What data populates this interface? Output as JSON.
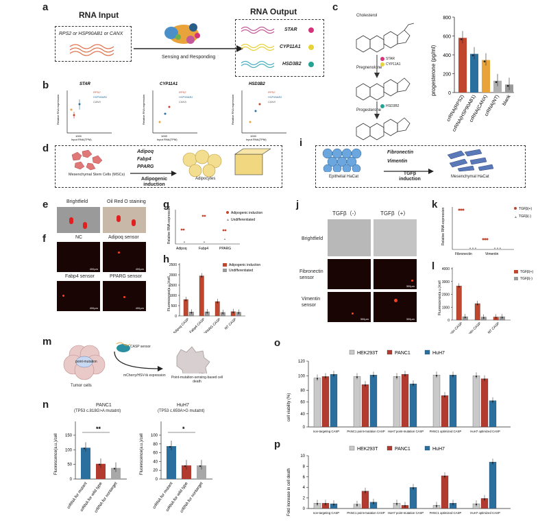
{
  "panels": {
    "a": {
      "letter": "a",
      "rna_input": "RNA Input",
      "input_genes": "RPS2 or HSP90AB1 or CANX",
      "arrow": "Sensing and Responding",
      "rna_output": "RNA Output",
      "outputs": [
        "STAR",
        "CYP11A1",
        "HSD3B2"
      ],
      "output_colors": [
        "#d6337a",
        "#e8d23a",
        "#23a393"
      ]
    },
    "b": {
      "letter": "b",
      "xlabel": "Input RNA(TPM)",
      "ylabel": "Relative RNA expression",
      "tick": "1000",
      "legend": [
        "RPS2",
        "HSP90AB1",
        "CANX"
      ],
      "charts": [
        "STAR",
        "CYP11A1",
        "HSD3B2"
      ]
    },
    "c": {
      "letter": "c",
      "molecules": [
        "Cholesterol",
        "Pregnenolone",
        "Progesterone"
      ],
      "enzymes1": [
        "STAR",
        "CYP11A1"
      ],
      "enzymes2": [
        "HSD3B2"
      ],
      "ylabel": "progesterone (pg/ml)",
      "yticks": [
        "0",
        "200",
        "400",
        "600",
        "800"
      ]
    },
    "d": {
      "letter": "d",
      "genes": [
        "Adipoq",
        "Fabp4",
        "PPARG"
      ],
      "cells": "Mesenchymal Stem Cells (MSCs)",
      "arrow": "Adipogenic induction",
      "result": "Adipocytes"
    },
    "e": {
      "letter": "e",
      "titles": [
        "Brightfield",
        "Oil Red O staining"
      ],
      "scale": "200μm"
    },
    "f": {
      "letter": "f",
      "titles": [
        "NC",
        "Adipoq sensor",
        "Fabp4 sensor",
        "PPARG sensor"
      ],
      "scale": "400μm"
    },
    "g": {
      "letter": "g",
      "ylabel": "Relative RNA expression",
      "legend": [
        "Adipogenic induction",
        "Undifferentiated"
      ],
      "categories": [
        "Adipoq",
        "Fabp4",
        "PPARG"
      ]
    },
    "h": {
      "letter": "h",
      "ylabel": "Fluorescence(a.u.)/cell",
      "legend": [
        "Adipogenic induction",
        "Undifferentiated"
      ],
      "yticks": [
        "0",
        "500",
        "1000",
        "1500",
        "2000",
        "2500"
      ]
    },
    "i": {
      "letter": "i",
      "genes": [
        "Fibronectin",
        "Vimentin"
      ],
      "cells": "Epithelial HaCat",
      "arrow": "TGFβ induction",
      "result": "Mesenchymal HaCat"
    },
    "j": {
      "letter": "j",
      "cols": [
        "TGFβ（-）",
        "TGFβ（+）"
      ],
      "rows": [
        "Brightfield",
        "Fibronectin sensor",
        "Vimentin sensor"
      ],
      "scale": "300μm"
    },
    "k": {
      "letter": "k",
      "ylabel": "Relative RNA expression",
      "legend": [
        "TGFβ(+)",
        "TGFβ(-)"
      ],
      "categories": [
        "Fibronectin",
        "Vimentin"
      ]
    },
    "l": {
      "letter": "l",
      "ylabel": "Fluorescence(a.u.)/cell",
      "legend": [
        "TGFβ(+)",
        "TGFβ(-)"
      ],
      "yticks": [
        "0",
        "1000",
        "2000",
        "3000",
        "4000"
      ]
    },
    "m": {
      "letter": "m",
      "cell_label": "point-mutation",
      "tumor": "Tumor cells",
      "sensor": "CASP sensor",
      "arrow": "mCherry/HSV-tk expression",
      "result": "Point-mutation-sensing-based cell death"
    },
    "n": {
      "letter": "n",
      "titles": [
        "PANC1",
        "HuH7"
      ],
      "subtitles": [
        "(TP53 c.818G>A mutatnt)",
        "(TP53 c.659A>G mutatnt)"
      ],
      "ylabel": "Fluorescence(a.u.)/cell",
      "sig": [
        "**",
        "*"
      ]
    },
    "o": {
      "letter": "o",
      "ylabel": "cell viability (%)",
      "legend": [
        "HEK293T",
        "PANC1",
        "HuH7"
      ],
      "yticks": [
        "0",
        "40",
        "60",
        "80",
        "100",
        "120"
      ]
    },
    "p": {
      "letter": "p",
      "ylabel": "Fold increase in cell death",
      "legend": [
        "HEK293T",
        "PANC1",
        "HuH7"
      ],
      "yticks": [
        "0",
        "2",
        "4",
        "6",
        "8",
        "10"
      ]
    }
  },
  "chart_data": [
    {
      "type": "bar",
      "panel": "c",
      "ylabel": "progesterone (pg/ml)",
      "ylim": [
        0,
        800
      ],
      "categories": [
        "crRNA(RPS2)",
        "crRNA(HSP90AB1)",
        "crRNA(CANX)",
        "crRNA(NT)",
        "blank"
      ],
      "values": [
        580,
        410,
        345,
        125,
        85
      ],
      "colors": [
        "#c0462d",
        "#2a6f9e",
        "#e8a33a",
        "#b0b0b0",
        "#9a9a9a"
      ]
    },
    {
      "type": "bar",
      "panel": "h",
      "ylabel": "Fluorescence(a.u.)/cell",
      "ylim": [
        0,
        2500
      ],
      "categories": [
        "Adipoq CASP",
        "Fabp4 CASP",
        "PPARG CASP",
        "NT CASP"
      ],
      "series": [
        {
          "name": "Adipogenic induction",
          "values": [
            800,
            1950,
            700,
            210
          ]
        },
        {
          "name": "Undifferentiated",
          "values": [
            190,
            200,
            170,
            180
          ]
        }
      ]
    },
    {
      "type": "bar",
      "panel": "l",
      "ylabel": "Fluorescence(a.u.)/cell",
      "ylim": [
        0,
        4000
      ],
      "categories": [
        "Fibronectin CASP",
        "Vimentin CASP",
        "NT CASP"
      ],
      "series": [
        {
          "name": "TGFβ(+)",
          "values": [
            2650,
            1280,
            240
          ]
        },
        {
          "name": "TGFβ(-)",
          "values": [
            260,
            230,
            250
          ]
        }
      ]
    },
    {
      "type": "bar",
      "panel": "n-left",
      "title": "PANC1",
      "ylabel": "Fluorescence(a.u.)/cell",
      "ylim": [
        0,
        150
      ],
      "yticks": [
        "0",
        "50",
        "100",
        "150"
      ],
      "categories": [
        "crRNA for mutant",
        "crRNA for wild type",
        "crRNA for nontarget"
      ],
      "values": [
        107,
        52,
        38
      ]
    },
    {
      "type": "bar",
      "panel": "n-right",
      "title": "HuH7",
      "ylabel": "Fluorescence(a.u.)/cell",
      "ylim": [
        0,
        100
      ],
      "yticks": [
        "0",
        "20",
        "40",
        "60",
        "80",
        "100"
      ],
      "categories": [
        "crRNA for mutant",
        "crRNA for wild type",
        "crRNA for nontarget"
      ],
      "values": [
        75,
        31,
        31
      ]
    },
    {
      "type": "bar",
      "panel": "o",
      "ylabel": "cell viability (%)",
      "categories": [
        "non-targeting CASP",
        "PANC1 point-mutation CASP",
        "HuH7 point-mutation CASP",
        "PANC1 optimized CASP",
        "HuH7 optimized CASP"
      ],
      "series": [
        {
          "name": "HEK293T",
          "values": [
            97,
            99,
            99,
            101,
            100
          ]
        },
        {
          "name": "PANC1",
          "values": [
            99,
            88,
            102,
            73,
            96
          ]
        },
        {
          "name": "HuH7",
          "values": [
            102,
            101,
            89,
            101,
            66
          ]
        }
      ]
    },
    {
      "type": "bar",
      "panel": "p",
      "ylabel": "Fold increase in cell death",
      "ylim": [
        0,
        10
      ],
      "categories": [
        "non-targeting CASP",
        "PANC1 point-mutation CASP",
        "HuH7 point-mutation CASP",
        "PANC1 optimized CASP",
        "HuH7 optimized CASP"
      ],
      "series": [
        {
          "name": "HEK293T",
          "values": [
            1.0,
            0.8,
            1.0,
            0.6,
            0.9
          ]
        },
        {
          "name": "PANC1",
          "values": [
            1.0,
            3.3,
            0.6,
            6.2,
            1.9
          ]
        },
        {
          "name": "HuH7",
          "values": [
            0.9,
            1.2,
            4.0,
            1.0,
            8.8
          ]
        }
      ]
    }
  ]
}
